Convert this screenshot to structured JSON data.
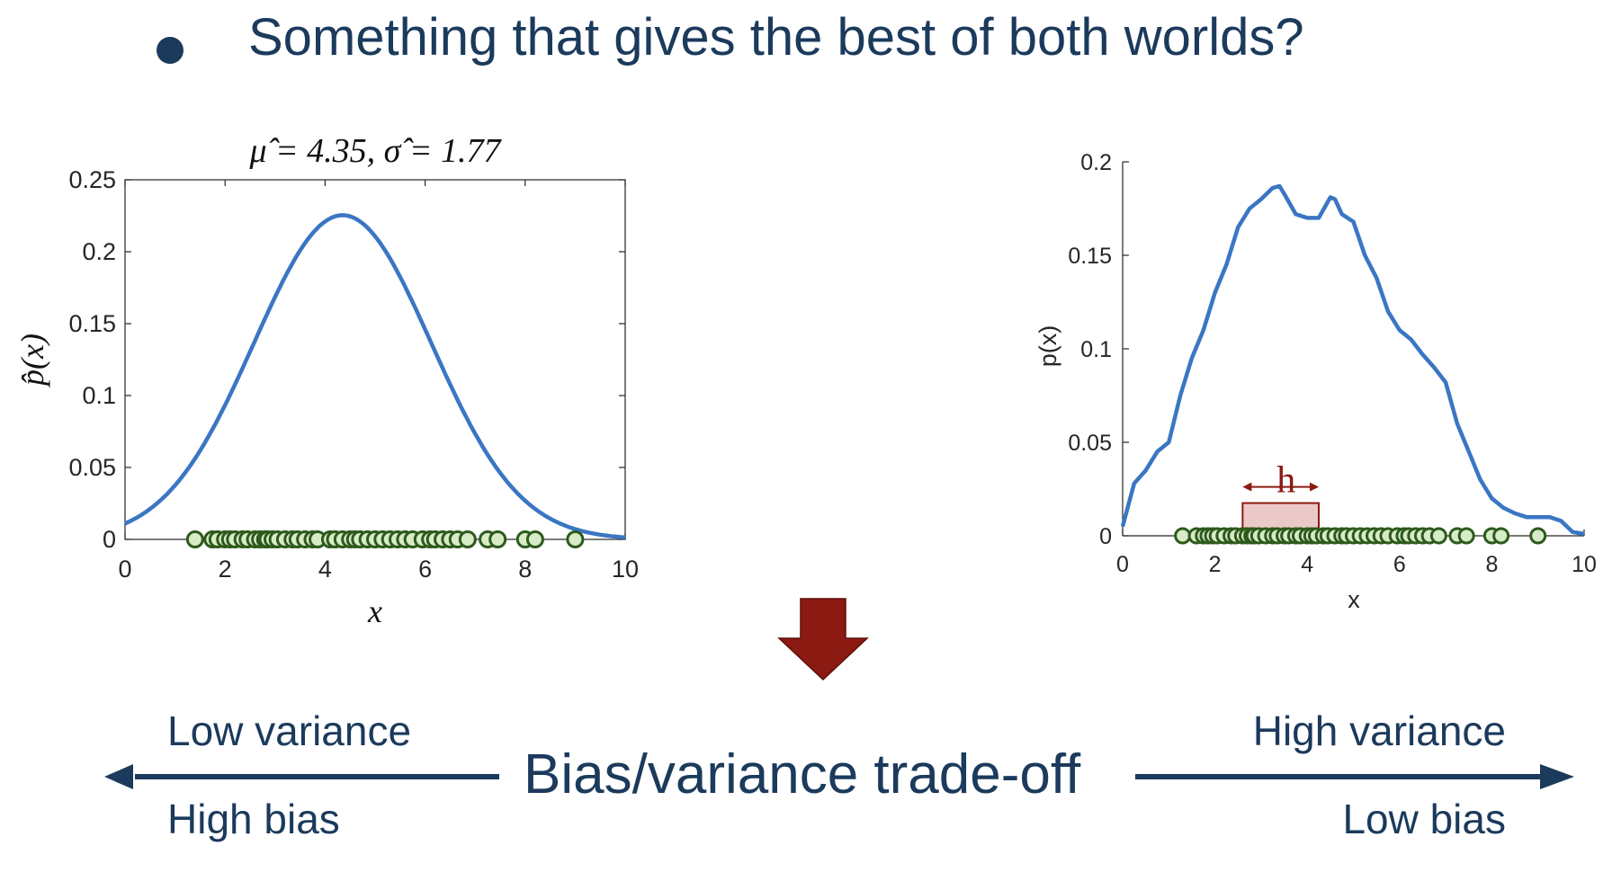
{
  "slide": {
    "bullet_text": "Something that gives the best of both worlds?"
  },
  "chart_data": [
    {
      "type": "line",
      "title": "μ̂ = 4.35, σ̂ = 1.77",
      "xlabel": "x",
      "ylabel": "p̂(x)",
      "xlim": [
        0,
        10
      ],
      "ylim": [
        0,
        0.25
      ],
      "xticks": [
        0,
        2,
        4,
        6,
        8,
        10
      ],
      "yticks": [
        0,
        0.05,
        0.1,
        0.15,
        0.2,
        0.25
      ],
      "box": true,
      "series": [
        {
          "kind": "gaussian",
          "mu": 4.35,
          "sigma": 1.77,
          "color": "#3a76c3"
        }
      ],
      "samples": [
        1.4,
        1.75,
        1.85,
        2.0,
        2.1,
        2.2,
        2.35,
        2.45,
        2.6,
        2.7,
        2.8,
        2.85,
        2.95,
        3.05,
        3.2,
        3.35,
        3.45,
        3.6,
        3.75,
        3.85,
        4.1,
        4.2,
        4.35,
        4.5,
        4.6,
        4.7,
        4.85,
        5.0,
        5.15,
        5.3,
        5.45,
        5.6,
        5.75,
        5.95,
        6.1,
        6.2,
        6.35,
        6.5,
        6.65,
        6.85,
        7.25,
        7.45,
        8.0,
        8.2,
        9.0
      ],
      "sample_color": "#2d5a1c",
      "sample_fill": "#d6ebc6"
    },
    {
      "type": "line",
      "title": "",
      "xlabel": "x",
      "ylabel": "p(x)",
      "xlim": [
        0,
        10
      ],
      "ylim": [
        0,
        0.2
      ],
      "xticks": [
        0,
        2,
        4,
        6,
        8,
        10
      ],
      "yticks": [
        0,
        0.05,
        0.1,
        0.15,
        0.2
      ],
      "box": false,
      "series": [
        {
          "kind": "kde",
          "color": "#3a76c3",
          "x": [
            0,
            0.25,
            0.5,
            0.75,
            1.0,
            1.25,
            1.5,
            1.75,
            2.0,
            2.25,
            2.5,
            2.75,
            3.0,
            3.25,
            3.4,
            3.5,
            3.75,
            4.0,
            4.25,
            4.5,
            4.6,
            4.75,
            5.0,
            5.25,
            5.5,
            5.75,
            6.0,
            6.25,
            6.5,
            6.75,
            7.0,
            7.25,
            7.5,
            7.75,
            8.0,
            8.25,
            8.5,
            8.75,
            9.0,
            9.25,
            9.5,
            9.75,
            10.0
          ],
          "y": [
            0.005,
            0.028,
            0.035,
            0.045,
            0.05,
            0.075,
            0.095,
            0.11,
            0.13,
            0.145,
            0.165,
            0.175,
            0.18,
            0.186,
            0.187,
            0.183,
            0.172,
            0.17,
            0.17,
            0.181,
            0.18,
            0.172,
            0.168,
            0.15,
            0.138,
            0.12,
            0.11,
            0.105,
            0.097,
            0.09,
            0.082,
            0.06,
            0.045,
            0.03,
            0.02,
            0.015,
            0.012,
            0.01,
            0.01,
            0.01,
            0.008,
            0.002,
            0.001
          ]
        }
      ],
      "samples": [
        1.3,
        1.6,
        1.75,
        1.85,
        1.95,
        2.05,
        2.2,
        2.35,
        2.45,
        2.6,
        2.7,
        2.8,
        2.85,
        2.95,
        3.1,
        3.25,
        3.35,
        3.5,
        3.6,
        3.75,
        3.85,
        4.0,
        4.1,
        4.2,
        4.35,
        4.45,
        4.6,
        4.75,
        4.85,
        5.0,
        5.15,
        5.3,
        5.45,
        5.6,
        5.75,
        5.95,
        6.1,
        6.2,
        6.35,
        6.5,
        6.65,
        6.85,
        7.25,
        7.45,
        8.0,
        8.2,
        9.0
      ],
      "sample_color": "#2d5a1c",
      "sample_fill": "#d6ebc6",
      "annotation": {
        "label": "h",
        "x_from": 2.6,
        "x_to": 4.25,
        "box_height": 0.0175,
        "color": "#8b1a12"
      }
    }
  ],
  "tradeoff": {
    "low_variance": "Low variance",
    "high_bias": "High bias",
    "center": "Bias/variance trade-off",
    "high_variance": "High variance",
    "low_bias": "Low bias",
    "arrow_color": "#1b3a5c",
    "down_arrow_color": "#8b1a12"
  }
}
